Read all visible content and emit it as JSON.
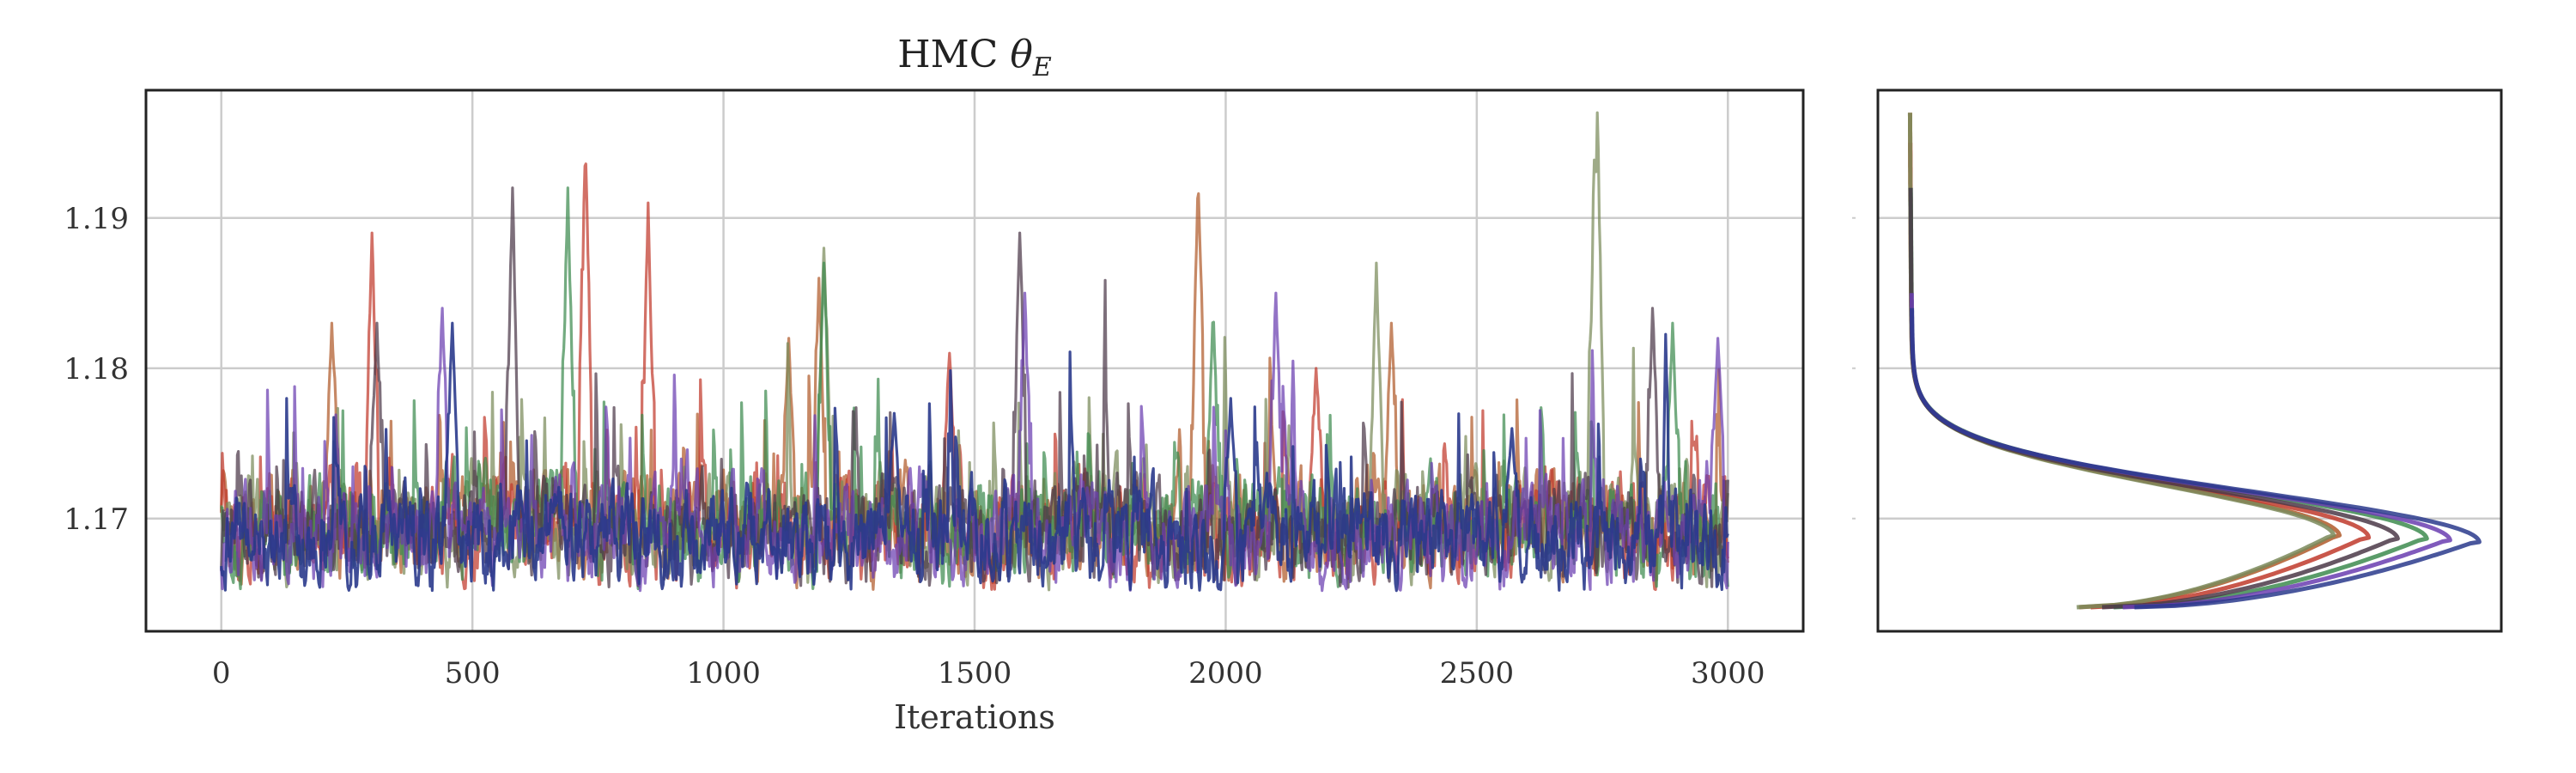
{
  "chart_data": [
    {
      "type": "line",
      "panel": "trace",
      "title": "HMC",
      "title_symbol": "θ",
      "title_subscript": "E",
      "xlabel": "Iterations",
      "ylabel": "",
      "xlim": [
        -150,
        3150
      ],
      "ylim": [
        1.1625,
        1.1985
      ],
      "xticks": [
        0,
        500,
        1000,
        1500,
        2000,
        2500,
        3000
      ],
      "xtick_labels": [
        "0",
        "500",
        "1000",
        "1500",
        "2000",
        "2500",
        "3000"
      ],
      "yticks": [
        1.17,
        1.18,
        1.19
      ],
      "ytick_labels": [
        "1.17",
        "1.18",
        "1.19"
      ],
      "grid": true,
      "iterations": 3000,
      "series": [
        {
          "color": "#b05a2a",
          "mean": 1.169,
          "spikes": [
            [
              1945,
              1.193
            ],
            [
              2330,
              1.183
            ],
            [
              1190,
              1.186
            ],
            [
              220,
              1.183
            ],
            [
              1130,
              1.182
            ]
          ]
        },
        {
          "color": "#c0392b",
          "mean": 1.1686,
          "spikes": [
            [
              725,
              1.195
            ],
            [
              300,
              1.189
            ],
            [
              850,
              1.191
            ],
            [
              1450,
              1.181
            ],
            [
              2180,
              1.18
            ]
          ]
        },
        {
          "color": "#7a8a5a",
          "mean": 1.1688,
          "spikes": [
            [
              2740,
              1.197
            ],
            [
              2735,
              1.195
            ],
            [
              2300,
              1.187
            ],
            [
              1200,
              1.188
            ]
          ]
        },
        {
          "color": "#3d8b4f",
          "mean": 1.1684,
          "spikes": [
            [
              690,
              1.192
            ],
            [
              1200,
              1.187
            ],
            [
              1975,
              1.184
            ],
            [
              2890,
              1.183
            ]
          ]
        },
        {
          "color": "#4b3848",
          "mean": 1.1683,
          "spikes": [
            [
              580,
              1.192
            ],
            [
              1590,
              1.189
            ],
            [
              2850,
              1.184
            ],
            [
              310,
              1.183
            ]
          ]
        },
        {
          "color": "#6a3db0",
          "mean": 1.1682,
          "spikes": [
            [
              440,
              1.184
            ],
            [
              2100,
              1.185
            ],
            [
              2980,
              1.182
            ],
            [
              1600,
              1.185
            ]
          ]
        },
        {
          "color": "#2a3a8c",
          "mean": 1.168,
          "spikes": [
            [
              460,
              1.183
            ],
            [
              1340,
              1.177
            ],
            [
              2010,
              1.178
            ],
            [
              2570,
              1.176
            ]
          ]
        }
      ]
    },
    {
      "type": "line",
      "panel": "density",
      "title": "",
      "xlabel": "",
      "ylabel": "",
      "orientation": "horizontal",
      "ylim": [
        1.1625,
        1.1985
      ],
      "yticks": [
        1.17,
        1.18,
        1.19
      ],
      "grid": true,
      "series": [
        {
          "color": "#b05a2a",
          "peak_y": 1.1688,
          "peak_density": 0.74,
          "ymax": 1.197
        },
        {
          "color": "#c0392b",
          "peak_y": 1.1687,
          "peak_density": 0.79,
          "ymax": 1.195
        },
        {
          "color": "#7a8a5a",
          "peak_y": 1.1688,
          "peak_density": 0.73,
          "ymax": 1.197
        },
        {
          "color": "#3d8b4f",
          "peak_y": 1.1686,
          "peak_density": 0.89,
          "ymax": 1.192
        },
        {
          "color": "#4b3848",
          "peak_y": 1.1686,
          "peak_density": 0.84,
          "ymax": 1.192
        },
        {
          "color": "#6a3db0",
          "peak_y": 1.1685,
          "peak_density": 0.93,
          "ymax": 1.185
        },
        {
          "color": "#2a3a8c",
          "peak_y": 1.1684,
          "peak_density": 0.98,
          "ymax": 1.184
        }
      ]
    }
  ]
}
